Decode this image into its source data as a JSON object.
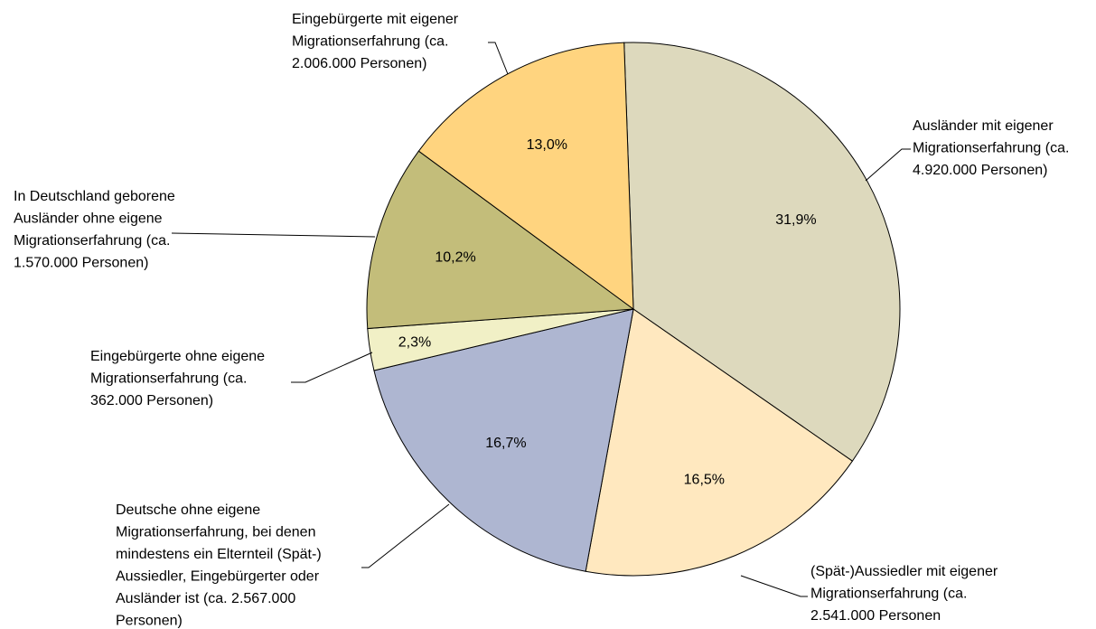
{
  "chart_data": {
    "type": "pie",
    "categories": [
      [
        "Ausländer mit eigener",
        "Migrationserfahrung (ca.",
        "4.920.000 Personen)"
      ],
      [
        "(Spät-)Aussiedler mit eigener",
        "Migrationserfahrung (ca.",
        "2.541.000 Personen"
      ],
      [
        "Deutsche ohne eigene",
        "Migrationserfahrung, bei denen",
        "mindestens ein Elternteil (Spät-)",
        "Aussiedler, Eingebürgerter oder",
        "Ausländer ist (ca. 2.567.000",
        "Personen)"
      ],
      [
        "Eingebürgerte ohne eigene",
        "Migrationserfahrung (ca.",
        "362.000 Personen)"
      ],
      [
        "In Deutschland geborene",
        "Ausländer ohne eigene",
        "Migrationserfahrung (ca.",
        "1.570.000 Personen)"
      ],
      [
        "Eingebürgerte mit eigener",
        "Migrationserfahrung (ca.",
        "2.006.000 Personen)"
      ]
    ],
    "values": [
      31.9,
      16.5,
      16.7,
      2.3,
      10.2,
      13.0
    ],
    "value_labels": [
      "31,9%",
      "16,5%",
      "16,7%",
      "2,3%",
      "10,2%",
      "13,0%"
    ],
    "colors": [
      "#DDD9BD",
      "#FFE8BF",
      "#AEB6D1",
      "#F1F0C6",
      "#C3BD7A",
      "#FFD47F"
    ]
  }
}
